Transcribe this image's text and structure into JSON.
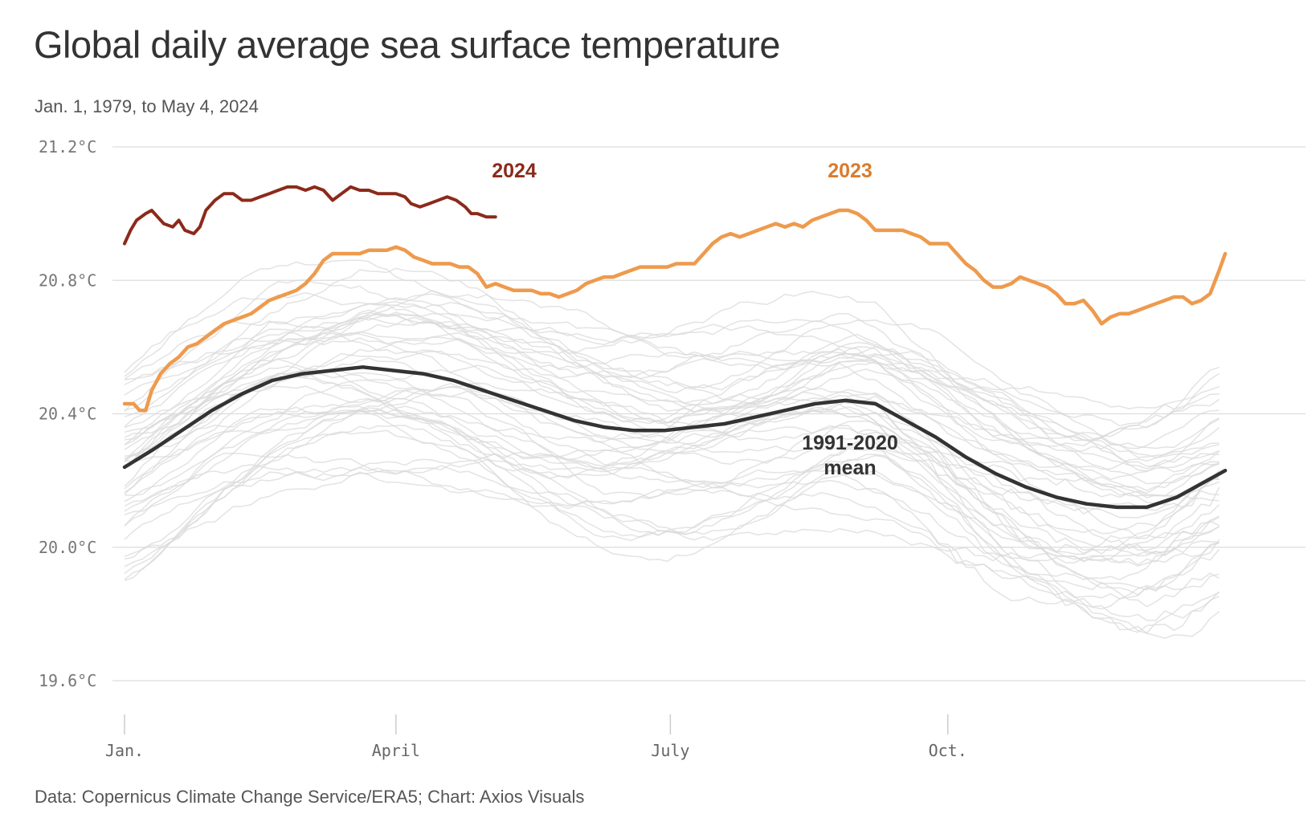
{
  "title": "Global daily average sea surface temperature",
  "subtitle": "Jan. 1, 1979, to May 4, 2024",
  "source": "Data: Copernicus Climate Change Service/ERA5; Chart: Axios Visuals",
  "chart_data": {
    "type": "line",
    "title": "Global daily average sea surface temperature",
    "subtitle": "Jan. 1, 1979, to May 4, 2024",
    "x_unit": "day of year",
    "x_range": [
      1,
      366
    ],
    "ylim": [
      19.6,
      21.2
    ],
    "y_ticks": [
      {
        "value": 21.2,
        "label": "21.2°C"
      },
      {
        "value": 20.8,
        "label": "20.8°C"
      },
      {
        "value": 20.4,
        "label": "20.4°C"
      },
      {
        "value": 20.0,
        "label": "20.0°C"
      },
      {
        "value": 19.6,
        "label": "19.6°C"
      }
    ],
    "x_ticks": [
      {
        "day": 1,
        "label": "Jan."
      },
      {
        "day": 91,
        "label": "April"
      },
      {
        "day": 182,
        "label": "July"
      },
      {
        "day": 274,
        "label": "Oct."
      }
    ],
    "grid": true,
    "series": [
      {
        "name": "2024",
        "color": "#8b2a1b",
        "points": [
          [
            1,
            20.91
          ],
          [
            3,
            20.95
          ],
          [
            5,
            20.98
          ],
          [
            8,
            21.0
          ],
          [
            10,
            21.01
          ],
          [
            12,
            20.99
          ],
          [
            14,
            20.97
          ],
          [
            17,
            20.96
          ],
          [
            19,
            20.98
          ],
          [
            21,
            20.95
          ],
          [
            24,
            20.94
          ],
          [
            26,
            20.96
          ],
          [
            28,
            21.01
          ],
          [
            31,
            21.04
          ],
          [
            34,
            21.06
          ],
          [
            37,
            21.06
          ],
          [
            40,
            21.04
          ],
          [
            43,
            21.04
          ],
          [
            46,
            21.05
          ],
          [
            49,
            21.06
          ],
          [
            52,
            21.07
          ],
          [
            55,
            21.08
          ],
          [
            58,
            21.08
          ],
          [
            61,
            21.07
          ],
          [
            64,
            21.08
          ],
          [
            67,
            21.07
          ],
          [
            70,
            21.04
          ],
          [
            73,
            21.06
          ],
          [
            76,
            21.08
          ],
          [
            79,
            21.07
          ],
          [
            82,
            21.07
          ],
          [
            85,
            21.06
          ],
          [
            88,
            21.06
          ],
          [
            91,
            21.06
          ],
          [
            94,
            21.05
          ],
          [
            96,
            21.03
          ],
          [
            99,
            21.02
          ],
          [
            102,
            21.03
          ],
          [
            105,
            21.04
          ],
          [
            108,
            21.05
          ],
          [
            111,
            21.04
          ],
          [
            114,
            21.02
          ],
          [
            116,
            21.0
          ],
          [
            118,
            21.0
          ],
          [
            121,
            20.99
          ],
          [
            124,
            20.99
          ]
        ]
      },
      {
        "name": "2023",
        "color": "#ee9a4d",
        "points": [
          [
            1,
            20.43
          ],
          [
            4,
            20.43
          ],
          [
            6,
            20.41
          ],
          [
            8,
            20.41
          ],
          [
            10,
            20.47
          ],
          [
            13,
            20.52
          ],
          [
            16,
            20.55
          ],
          [
            19,
            20.57
          ],
          [
            22,
            20.6
          ],
          [
            25,
            20.61
          ],
          [
            28,
            20.63
          ],
          [
            31,
            20.65
          ],
          [
            34,
            20.67
          ],
          [
            37,
            20.68
          ],
          [
            40,
            20.69
          ],
          [
            43,
            20.7
          ],
          [
            46,
            20.72
          ],
          [
            49,
            20.74
          ],
          [
            52,
            20.75
          ],
          [
            55,
            20.76
          ],
          [
            58,
            20.77
          ],
          [
            61,
            20.79
          ],
          [
            64,
            20.82
          ],
          [
            67,
            20.86
          ],
          [
            70,
            20.88
          ],
          [
            73,
            20.88
          ],
          [
            76,
            20.88
          ],
          [
            79,
            20.88
          ],
          [
            82,
            20.89
          ],
          [
            85,
            20.89
          ],
          [
            88,
            20.89
          ],
          [
            91,
            20.9
          ],
          [
            94,
            20.89
          ],
          [
            97,
            20.87
          ],
          [
            100,
            20.86
          ],
          [
            103,
            20.85
          ],
          [
            106,
            20.85
          ],
          [
            109,
            20.85
          ],
          [
            112,
            20.84
          ],
          [
            115,
            20.84
          ],
          [
            118,
            20.82
          ],
          [
            121,
            20.78
          ],
          [
            124,
            20.79
          ],
          [
            127,
            20.78
          ],
          [
            130,
            20.77
          ],
          [
            133,
            20.77
          ],
          [
            136,
            20.77
          ],
          [
            139,
            20.76
          ],
          [
            142,
            20.76
          ],
          [
            145,
            20.75
          ],
          [
            148,
            20.76
          ],
          [
            151,
            20.77
          ],
          [
            154,
            20.79
          ],
          [
            157,
            20.8
          ],
          [
            160,
            20.81
          ],
          [
            163,
            20.81
          ],
          [
            166,
            20.82
          ],
          [
            169,
            20.83
          ],
          [
            172,
            20.84
          ],
          [
            175,
            20.84
          ],
          [
            178,
            20.84
          ],
          [
            181,
            20.84
          ],
          [
            184,
            20.85
          ],
          [
            187,
            20.85
          ],
          [
            190,
            20.85
          ],
          [
            193,
            20.88
          ],
          [
            196,
            20.91
          ],
          [
            199,
            20.93
          ],
          [
            202,
            20.94
          ],
          [
            205,
            20.93
          ],
          [
            208,
            20.94
          ],
          [
            211,
            20.95
          ],
          [
            214,
            20.96
          ],
          [
            217,
            20.97
          ],
          [
            220,
            20.96
          ],
          [
            223,
            20.97
          ],
          [
            226,
            20.96
          ],
          [
            229,
            20.98
          ],
          [
            232,
            20.99
          ],
          [
            235,
            21.0
          ],
          [
            238,
            21.01
          ],
          [
            241,
            21.01
          ],
          [
            244,
            21.0
          ],
          [
            247,
            20.98
          ],
          [
            250,
            20.95
          ],
          [
            253,
            20.95
          ],
          [
            256,
            20.95
          ],
          [
            259,
            20.95
          ],
          [
            262,
            20.94
          ],
          [
            265,
            20.93
          ],
          [
            268,
            20.91
          ],
          [
            271,
            20.91
          ],
          [
            274,
            20.91
          ],
          [
            277,
            20.88
          ],
          [
            280,
            20.85
          ],
          [
            283,
            20.83
          ],
          [
            286,
            20.8
          ],
          [
            289,
            20.78
          ],
          [
            292,
            20.78
          ],
          [
            295,
            20.79
          ],
          [
            298,
            20.81
          ],
          [
            301,
            20.8
          ],
          [
            304,
            20.79
          ],
          [
            307,
            20.78
          ],
          [
            310,
            20.76
          ],
          [
            313,
            20.73
          ],
          [
            316,
            20.73
          ],
          [
            319,
            20.74
          ],
          [
            322,
            20.71
          ],
          [
            325,
            20.67
          ],
          [
            328,
            20.69
          ],
          [
            331,
            20.7
          ],
          [
            334,
            20.7
          ],
          [
            337,
            20.71
          ],
          [
            340,
            20.72
          ],
          [
            343,
            20.73
          ],
          [
            346,
            20.74
          ],
          [
            349,
            20.75
          ],
          [
            352,
            20.75
          ],
          [
            355,
            20.73
          ],
          [
            358,
            20.74
          ],
          [
            361,
            20.76
          ],
          [
            364,
            20.83
          ],
          [
            366,
            20.88
          ]
        ]
      },
      {
        "name": "1991-2020 mean",
        "color": "#333333",
        "points": [
          [
            1,
            20.24
          ],
          [
            10,
            20.29
          ],
          [
            20,
            20.35
          ],
          [
            30,
            20.41
          ],
          [
            40,
            20.46
          ],
          [
            50,
            20.5
          ],
          [
            60,
            20.52
          ],
          [
            70,
            20.53
          ],
          [
            80,
            20.54
          ],
          [
            90,
            20.53
          ],
          [
            100,
            20.52
          ],
          [
            110,
            20.5
          ],
          [
            120,
            20.47
          ],
          [
            130,
            20.44
          ],
          [
            140,
            20.41
          ],
          [
            150,
            20.38
          ],
          [
            160,
            20.36
          ],
          [
            170,
            20.35
          ],
          [
            180,
            20.35
          ],
          [
            190,
            20.36
          ],
          [
            200,
            20.37
          ],
          [
            210,
            20.39
          ],
          [
            220,
            20.41
          ],
          [
            230,
            20.43
          ],
          [
            240,
            20.44
          ],
          [
            250,
            20.43
          ],
          [
            260,
            20.38
          ],
          [
            270,
            20.33
          ],
          [
            280,
            20.27
          ],
          [
            290,
            20.22
          ],
          [
            300,
            20.18
          ],
          [
            310,
            20.15
          ],
          [
            320,
            20.13
          ],
          [
            330,
            20.12
          ],
          [
            340,
            20.12
          ],
          [
            350,
            20.15
          ],
          [
            360,
            20.2
          ],
          [
            366,
            20.23
          ]
        ]
      }
    ],
    "background_series_note_hidden": false,
    "annotations": [
      {
        "text": "2024",
        "series": "2024"
      },
      {
        "text": "2023",
        "series": "2023"
      },
      {
        "text": "1991-2020",
        "series": "1991-2020 mean"
      },
      {
        "text": "mean",
        "series": "1991-2020 mean"
      }
    ]
  }
}
